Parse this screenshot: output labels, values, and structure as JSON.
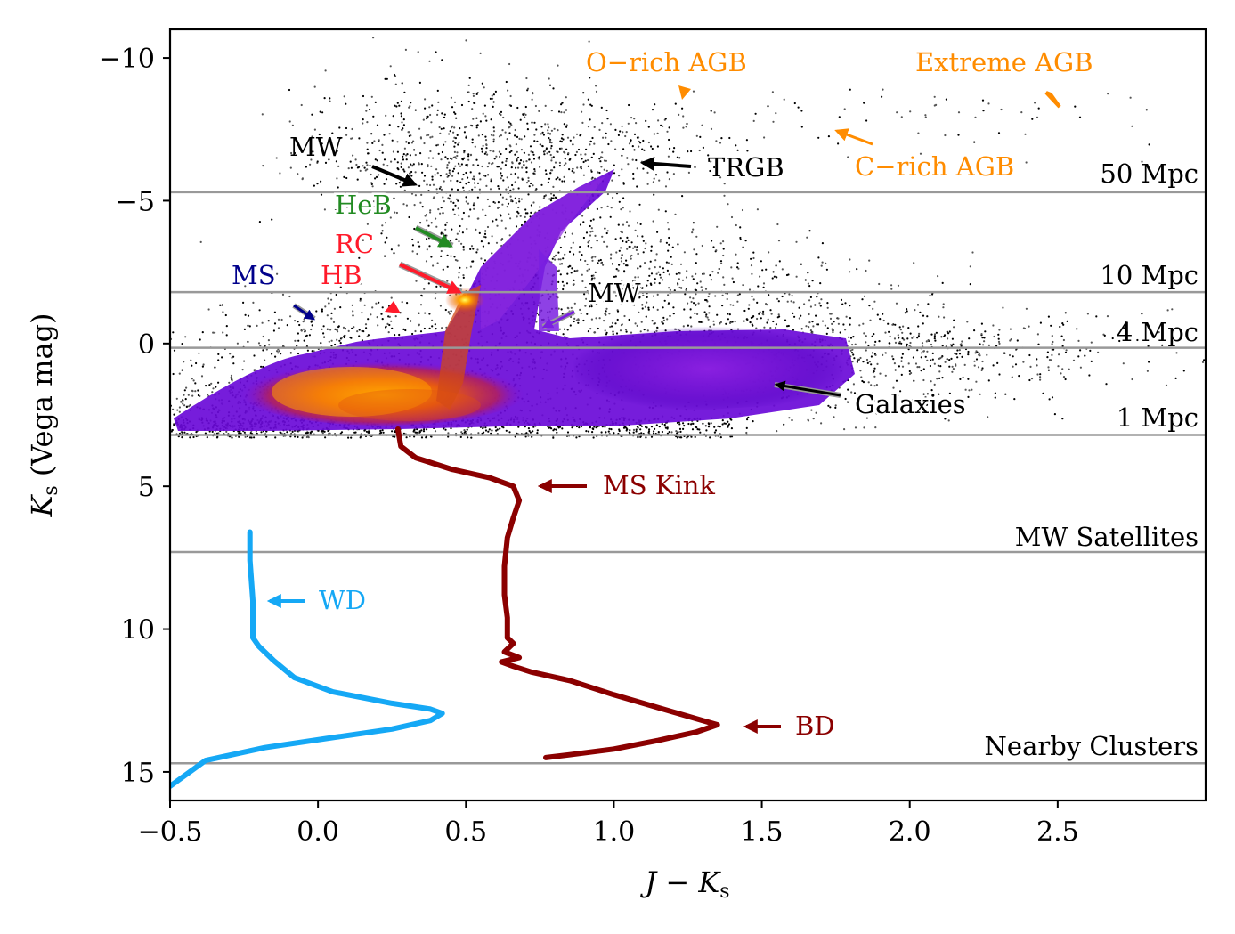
{
  "chart_data": {
    "type": "scatter",
    "title": "",
    "xlabel": "J − K",
    "xlabel_sub": "s",
    "ylabel_prefix": "K",
    "ylabel_sub": "s",
    "ylabel_suffix": " (Vega mag)",
    "xlim": [
      -0.5,
      3.0
    ],
    "ylim": [
      16,
      -10
    ],
    "y_inverted": true,
    "grid": false,
    "x_ticks": [
      {
        "value": -0.5,
        "label": "−0.5"
      },
      {
        "value": 0.0,
        "label": "0.0"
      },
      {
        "value": 0.5,
        "label": "0.5"
      },
      {
        "value": 1.0,
        "label": "1.0"
      },
      {
        "value": 1.5,
        "label": "1.5"
      },
      {
        "value": 2.0,
        "label": "2.0"
      },
      {
        "value": 2.5,
        "label": "2.5"
      }
    ],
    "y_ticks": [
      {
        "value": -10,
        "label": "−10"
      },
      {
        "value": -5,
        "label": "−5"
      },
      {
        "value": 0,
        "label": "0"
      },
      {
        "value": 5,
        "label": "5"
      },
      {
        "value": 10,
        "label": "10"
      },
      {
        "value": 15,
        "label": "15"
      }
    ],
    "distance_lines": [
      {
        "label": "50 Mpc",
        "y": -5.3
      },
      {
        "label": "10 Mpc",
        "y": -1.8
      },
      {
        "label": "4 Mpc",
        "y": 0.15
      },
      {
        "label": "1 Mpc",
        "y": 3.2
      },
      {
        "label": "MW Satellites",
        "y": 7.3
      },
      {
        "label": "Nearby Clusters",
        "y": 14.7
      }
    ],
    "distance_line_color": "#999999",
    "series": [
      {
        "name": "WD",
        "color": "#15a8f5",
        "points": [
          [
            -0.23,
            6.6
          ],
          [
            -0.23,
            7.6
          ],
          [
            -0.22,
            9.0
          ],
          [
            -0.22,
            10.3
          ],
          [
            -0.2,
            10.6
          ],
          [
            -0.15,
            11.1
          ],
          [
            -0.08,
            11.7
          ],
          [
            0.05,
            12.2
          ],
          [
            0.25,
            12.6
          ],
          [
            0.38,
            12.8
          ],
          [
            0.42,
            12.95
          ],
          [
            0.38,
            13.2
          ],
          [
            0.25,
            13.5
          ],
          [
            0.05,
            13.8
          ],
          [
            -0.18,
            14.15
          ],
          [
            -0.38,
            14.6
          ],
          [
            -0.5,
            15.5
          ]
        ]
      },
      {
        "name": "MS Kink / BD",
        "color": "#8b0000",
        "points": [
          [
            0.27,
            3.0
          ],
          [
            0.28,
            3.6
          ],
          [
            0.33,
            4.0
          ],
          [
            0.45,
            4.4
          ],
          [
            0.58,
            4.7
          ],
          [
            0.66,
            5.0
          ],
          [
            0.68,
            5.5
          ],
          [
            0.66,
            6.1
          ],
          [
            0.64,
            6.8
          ],
          [
            0.63,
            7.8
          ],
          [
            0.63,
            8.8
          ],
          [
            0.64,
            9.6
          ],
          [
            0.64,
            10.3
          ],
          [
            0.66,
            10.5
          ],
          [
            0.63,
            10.8
          ],
          [
            0.68,
            11.0
          ],
          [
            0.62,
            11.15
          ],
          [
            0.66,
            11.3
          ],
          [
            0.72,
            11.5
          ],
          [
            0.85,
            11.8
          ],
          [
            1.0,
            12.3
          ],
          [
            1.2,
            12.9
          ],
          [
            1.3,
            13.2
          ],
          [
            1.35,
            13.35
          ],
          [
            1.28,
            13.6
          ],
          [
            1.15,
            13.9
          ],
          [
            1.0,
            14.2
          ],
          [
            0.85,
            14.4
          ],
          [
            0.77,
            14.5
          ]
        ]
      }
    ],
    "annotations": [
      {
        "text": "O−rich AGB",
        "color": "#ff8c00"
      },
      {
        "text": "Extreme AGB",
        "color": "#ff8c00"
      },
      {
        "text": "C−rich AGB",
        "color": "#ff8c00"
      },
      {
        "text": "MW",
        "color": "#000000"
      },
      {
        "text": "TRGB",
        "color": "#000000"
      },
      {
        "text": "HeB",
        "color": "#228b22"
      },
      {
        "text": "RC",
        "color": "#ff1a2a"
      },
      {
        "text": "HB",
        "color": "#ff1a2a"
      },
      {
        "text": "MS",
        "color": "#00008b"
      },
      {
        "text": "MW",
        "color": "#000000"
      },
      {
        "text": "Galaxies",
        "color": "#000000"
      },
      {
        "text": "MS Kink",
        "color": "#8b0000"
      },
      {
        "text": "WD",
        "color": "#15a8f5"
      },
      {
        "text": "BD",
        "color": "#8b0000"
      }
    ]
  }
}
